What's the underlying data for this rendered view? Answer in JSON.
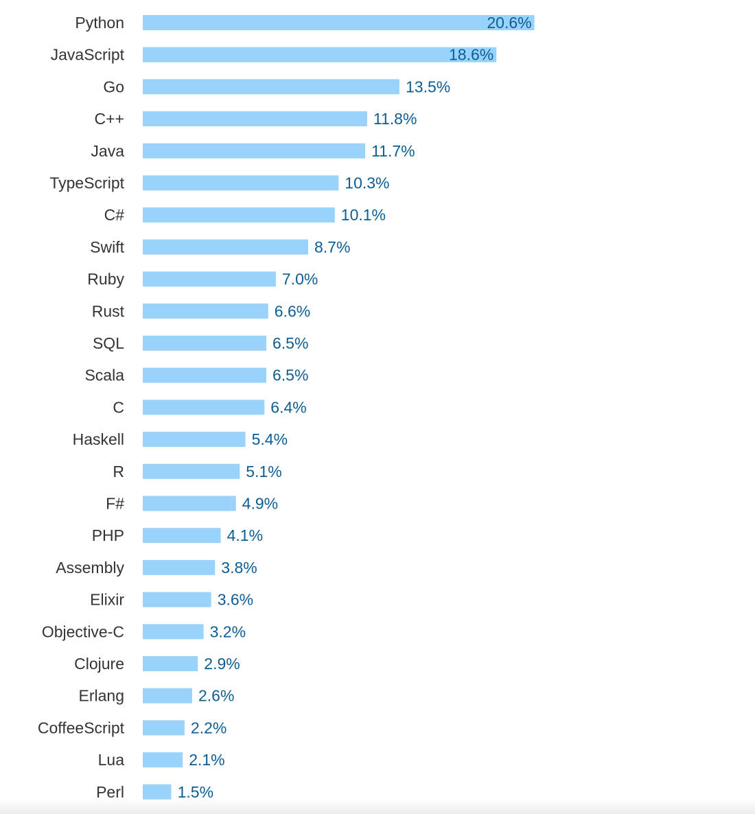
{
  "chart_data": {
    "type": "bar",
    "orientation": "horizontal",
    "categories": [
      "Python",
      "JavaScript",
      "Go",
      "C++",
      "Java",
      "TypeScript",
      "C#",
      "Swift",
      "Ruby",
      "Rust",
      "SQL",
      "Scala",
      "C",
      "Haskell",
      "R",
      "F#",
      "PHP",
      "Assembly",
      "Elixir",
      "Objective-C",
      "Clojure",
      "Erlang",
      "CoffeeScript",
      "Lua",
      "Perl"
    ],
    "values": [
      20.6,
      18.6,
      13.5,
      11.8,
      11.7,
      10.3,
      10.1,
      8.7,
      7.0,
      6.6,
      6.5,
      6.5,
      6.4,
      5.4,
      5.1,
      4.9,
      4.1,
      3.8,
      3.6,
      3.2,
      2.9,
      2.6,
      2.2,
      2.1,
      1.5
    ],
    "value_labels": [
      "20.6%",
      "18.6%",
      "13.5%",
      "11.8%",
      "11.7%",
      "10.3%",
      "10.1%",
      "8.7%",
      "7.0%",
      "6.6%",
      "6.5%",
      "6.5%",
      "6.4%",
      "5.4%",
      "5.1%",
      "4.9%",
      "4.1%",
      "3.8%",
      "3.6%",
      "3.2%",
      "2.9%",
      "2.6%",
      "2.2%",
      "2.1%",
      "1.5%"
    ],
    "unit": "%",
    "grid": false,
    "legend": "none",
    "bar_color": "#99d3fc",
    "value_label_color": "#0b5d94",
    "category_label_color": "#333333"
  }
}
